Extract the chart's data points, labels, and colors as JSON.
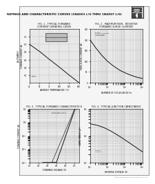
{
  "title": "RATINGS AND CHARACTERISTIC CURVES (1N4001 L/G THRU 1N4007 L/G)",
  "page_bg": "#f5f5f5",
  "plot_bg": "#e8e8e8",
  "fig1_title": "FIG. 1 - TYPICAL FORWARD\nCURRENT DERATING CURVE",
  "fig2_title": "FIG. 2 - MAXIMUM NON - RESISTIVE\nFORWARD SURGE CURRENT",
  "fig3_title": "FIG. 3 - TYPICAL FORWARD CHARACTERISTICS",
  "fig4_title": "FIG. 4 - TYPICAL JUNCTION CAPACITANCE",
  "footer_text": "GOOD-ARK ELECTRONICS COMPANY CO., LTD",
  "border_color": "#888888",
  "grid_color": "#bbbbbb",
  "line_color": "#222222",
  "title_fontsize": 3.0,
  "label_fontsize": 2.2,
  "tick_fontsize": 2.0,
  "subtitle_fontsize": 2.5
}
